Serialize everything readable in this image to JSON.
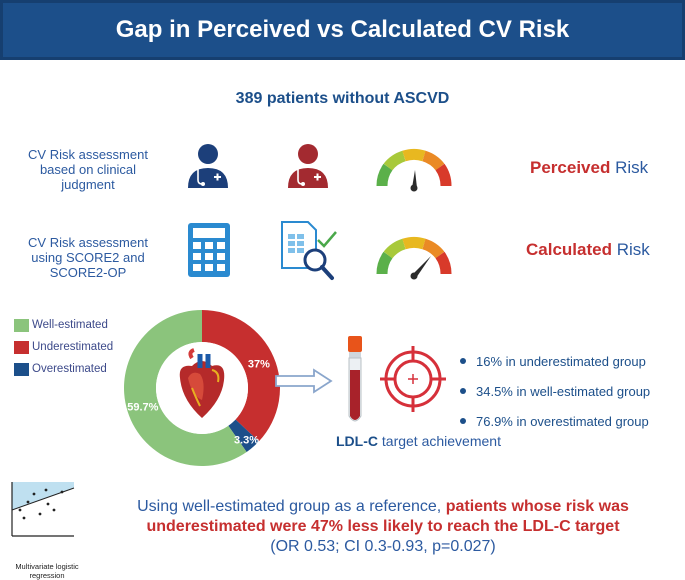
{
  "header": {
    "title": "Gap in Perceived vs Calculated CV Risk"
  },
  "subtitle": "389 patients without ASCVD",
  "rows": [
    {
      "label": [
        "CV Risk assessment",
        "based on clinical",
        "judgment"
      ],
      "risk_strong": "Perceived",
      "risk_plain": "Risk"
    },
    {
      "label": [
        "CV Risk assessment",
        "using SCORE2 and",
        "SCORE2-OP"
      ],
      "risk_strong": "Calculated",
      "risk_plain": "Risk"
    }
  ],
  "legend": [
    {
      "label": "Well-estimated",
      "color": "#8bc47c"
    },
    {
      "label": "Underestimated",
      "color": "#c62f2f"
    },
    {
      "label": "Overestimated",
      "color": "#1c4f8a"
    }
  ],
  "chart_data": {
    "type": "pie",
    "style": "donut",
    "categories": [
      "Underestimated",
      "Overestimated",
      "Well-estimated"
    ],
    "values": [
      37,
      3.3,
      59.7
    ],
    "data_labels": [
      "37%",
      "3.3%",
      "59.7%"
    ],
    "colors": [
      "#c62f2f",
      "#1c4f8a",
      "#8bc47c"
    ]
  },
  "ldl": {
    "strong": "LDL-C",
    "rest": "target achievement"
  },
  "bullets": [
    "16% in underestimated group",
    "34.5% in well-estimated group",
    "76.9% in overestimated group"
  ],
  "conclusion": {
    "line1_blue": "Using well-estimated group as a reference,",
    "line1_red": "patients whose risk was",
    "line2_red": "underestimated were 47% less likely to reach the LDL-C target",
    "line3_blue": "(OR 0.53; CI 0.3-0.93, p=0.027)"
  },
  "plot_caption": [
    "Multivariate logistic",
    "regression"
  ],
  "colors": {
    "header": "#1c4f8a",
    "red": "#c62f2f",
    "blue": "#2c5aa0",
    "green": "#8bc47c"
  }
}
